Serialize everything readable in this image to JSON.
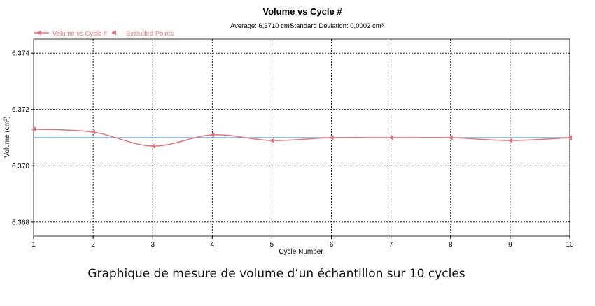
{
  "chart_data": {
    "type": "line",
    "title": "Volume vs Cycle #",
    "subtitle_average": "Average: 6,3710 cm³",
    "subtitle_stddev": "Standard Deviation: 0,0002 cm³",
    "xlabel": "Cycle Number",
    "ylabel": "Volume (cm³)",
    "xlim": [
      1,
      10
    ],
    "ylim": [
      6.3675,
      6.3745
    ],
    "x_ticks": [
      "1",
      "2",
      "3",
      "4",
      "5",
      "6",
      "7",
      "8",
      "9",
      "10"
    ],
    "y_ticks": [
      "6.368",
      "6.370",
      "6.372",
      "6.374"
    ],
    "y_tick_values": [
      6.368,
      6.37,
      6.372,
      6.374
    ],
    "grid": true,
    "legend_position": "top-left",
    "legend": [
      "Volume vs Cycle #",
      "Excluded Points"
    ],
    "series": [
      {
        "name": "Volume vs Cycle #",
        "color": "#e8727a",
        "x": [
          1,
          2,
          3,
          4,
          5,
          6,
          7,
          8,
          9,
          10
        ],
        "values": [
          6.3713,
          6.3712,
          6.3707,
          6.3711,
          6.3709,
          6.371,
          6.371,
          6.371,
          6.3709,
          6.371
        ]
      }
    ],
    "average_line": {
      "value": 6.371,
      "color": "#5b9bc4"
    }
  },
  "caption": "Graphique de mesure de volume d’un échantillon sur 10 cycles"
}
